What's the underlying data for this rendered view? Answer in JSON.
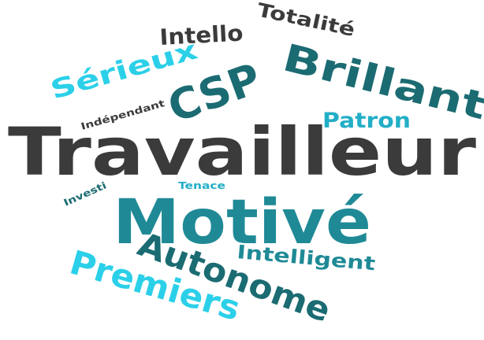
{
  "palette": {
    "dark": "#3b3b3b",
    "teal_dark": "#1b6b72",
    "teal": "#1f8a96",
    "cyan": "#2bd0e8",
    "cyan_mid": "#22aec6"
  },
  "words": [
    {
      "key": "travailleur",
      "text": "Travailleur",
      "color": "#3b3b3b"
    },
    {
      "key": "motive",
      "text": "Motivé",
      "color": "#1f8a96"
    },
    {
      "key": "brillant",
      "text": "Brillant",
      "color": "#1b6b72"
    },
    {
      "key": "csp",
      "text": "CSP",
      "color": "#1b6b72"
    },
    {
      "key": "autonome",
      "text": "Autonome",
      "color": "#1b6b72"
    },
    {
      "key": "premiers",
      "text": "Premiers",
      "color": "#2bd0e8"
    },
    {
      "key": "serieux",
      "text": "Sérieux",
      "color": "#2bd0e8"
    },
    {
      "key": "intello",
      "text": "Intello",
      "color": "#3b3b3b"
    },
    {
      "key": "totalite",
      "text": "Totalité",
      "color": "#3b3b3b"
    },
    {
      "key": "patron",
      "text": "Patron",
      "color": "#22aec6"
    },
    {
      "key": "intelligent",
      "text": "Intelligent",
      "color": "#1f8a96"
    },
    {
      "key": "independant",
      "text": "Indépendant",
      "color": "#3b3b3b"
    },
    {
      "key": "investi",
      "text": "Investi",
      "color": "#1b6b72"
    },
    {
      "key": "tenace",
      "text": "Tenace",
      "color": "#22aec6"
    }
  ]
}
